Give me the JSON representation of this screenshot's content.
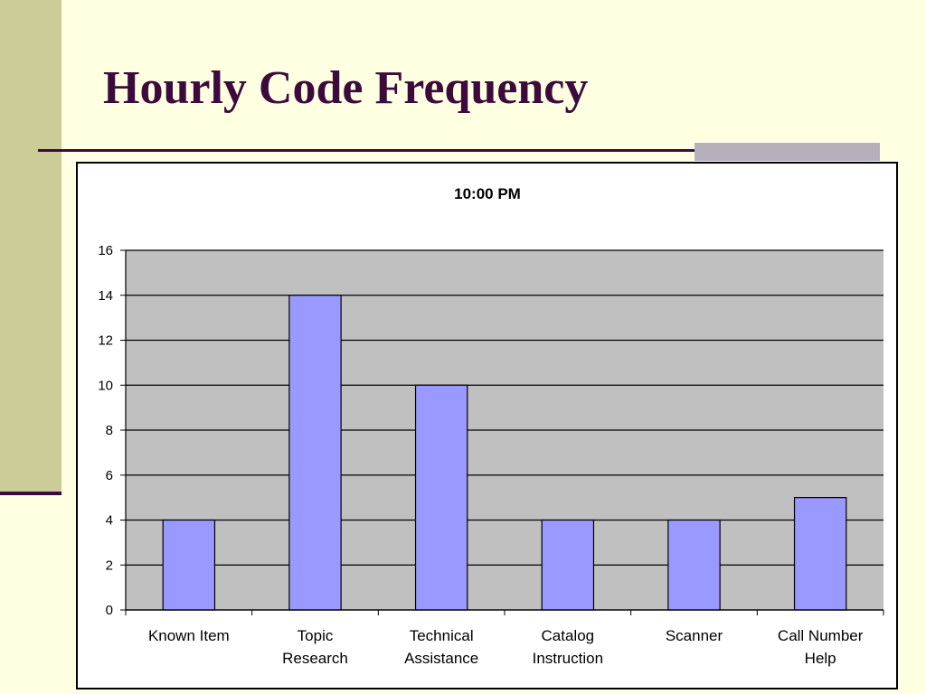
{
  "slide": {
    "title": "Hourly Code Frequency"
  },
  "colors": {
    "background": "#FFFFE1",
    "accent": "#3C0A3C",
    "sidebar": "#CCCC99",
    "plot_area": "#C0C0C0",
    "bar_fill": "#9999FF",
    "bar_stroke": "#000000"
  },
  "chart_data": {
    "type": "bar",
    "title": "10:00 PM",
    "xlabel": "",
    "ylabel": "",
    "categories": [
      [
        "Known Item"
      ],
      [
        "Topic",
        "Research"
      ],
      [
        "Technical",
        "Assistance"
      ],
      [
        "Catalog",
        "Instruction"
      ],
      [
        "Scanner"
      ],
      [
        "Call Number",
        "Help"
      ]
    ],
    "values": [
      4,
      14,
      10,
      4,
      4,
      5
    ],
    "ylim": [
      0,
      16
    ],
    "yticks": [
      0,
      2,
      4,
      6,
      8,
      10,
      12,
      14,
      16
    ],
    "grid": true,
    "legend": "none"
  }
}
